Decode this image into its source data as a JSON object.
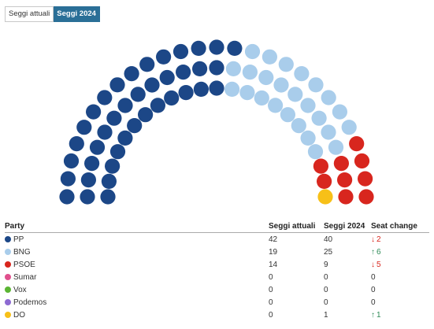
{
  "tabs": {
    "current": "Seggi attuali",
    "y2024": "Seggi 2024",
    "active": "y2024"
  },
  "table": {
    "headers": {
      "party": "Party",
      "actual": "Seggi attuali",
      "y2024": "Seggi 2024",
      "change": "Seat change"
    }
  },
  "chart_data": {
    "type": "hemicycle",
    "title": "",
    "total_seats": 75,
    "shown": "Seggi 2024",
    "parties": [
      {
        "name": "PP",
        "color": "#1c4787",
        "seats_actual": 42,
        "seats_2024": 40,
        "change": "2",
        "direction": "down"
      },
      {
        "name": "BNG",
        "color": "#a9cdeb",
        "seats_actual": 19,
        "seats_2024": 25,
        "change": "6",
        "direction": "up"
      },
      {
        "name": "PSOE",
        "color": "#d8261e",
        "seats_actual": 14,
        "seats_2024": 9,
        "change": "5",
        "direction": "down"
      },
      {
        "name": "Sumar",
        "color": "#e0508d",
        "seats_actual": 0,
        "seats_2024": 0,
        "change": "0",
        "direction": "none"
      },
      {
        "name": "Vox",
        "color": "#5bb533",
        "seats_actual": 0,
        "seats_2024": 0,
        "change": "0",
        "direction": "none"
      },
      {
        "name": "Podemos",
        "color": "#8d6ad2",
        "seats_actual": 0,
        "seats_2024": 0,
        "change": "0",
        "direction": "none"
      },
      {
        "name": "DO",
        "color": "#f7c018",
        "seats_actual": 0,
        "seats_2024": 1,
        "change": "1",
        "direction": "up"
      }
    ],
    "change_colors": {
      "up": "#2e8b57",
      "down": "#d8261e"
    }
  }
}
